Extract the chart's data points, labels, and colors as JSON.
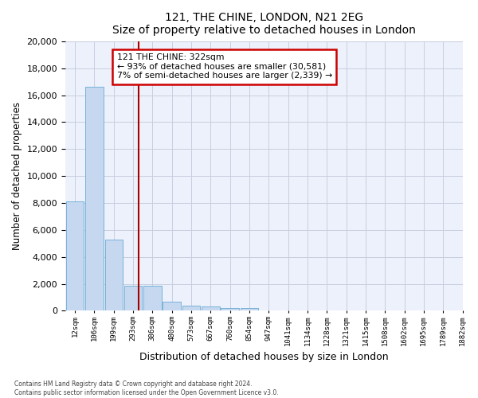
{
  "title1": "121, THE CHINE, LONDON, N21 2EG",
  "title2": "Size of property relative to detached houses in London",
  "xlabel": "Distribution of detached houses by size in London",
  "ylabel": "Number of detached properties",
  "bar_color": "#c5d8f0",
  "bar_edge_color": "#6aaad4",
  "vline_color": "#aa0000",
  "annotation_line1": "121 THE CHINE: 322sqm",
  "annotation_line2": "← 93% of detached houses are smaller (30,581)",
  "annotation_line3": "7% of semi-detached houses are larger (2,339) →",
  "annotation_box_color": "#cc0000",
  "footnote": "Contains HM Land Registry data © Crown copyright and database right 2024.\nContains public sector information licensed under the Open Government Licence v3.0.",
  "bin_labels": [
    "12sqm",
    "106sqm",
    "199sqm",
    "293sqm",
    "386sqm",
    "480sqm",
    "573sqm",
    "667sqm",
    "760sqm",
    "854sqm",
    "947sqm",
    "1041sqm",
    "1134sqm",
    "1228sqm",
    "1321sqm",
    "1415sqm",
    "1508sqm",
    "1602sqm",
    "1695sqm",
    "1789sqm",
    "1882sqm"
  ],
  "bar_heights": [
    8100,
    16600,
    5300,
    1850,
    1850,
    700,
    380,
    300,
    230,
    200,
    0,
    0,
    0,
    0,
    0,
    0,
    0,
    0,
    0,
    0
  ],
  "vline_index": 3.29,
  "ylim": [
    0,
    20000
  ],
  "yticks": [
    0,
    2000,
    4000,
    6000,
    8000,
    10000,
    12000,
    14000,
    16000,
    18000,
    20000
  ],
  "background_color": "#edf1fb",
  "grid_color": "#c8cee0",
  "figsize": [
    6.0,
    5.0
  ],
  "dpi": 100
}
